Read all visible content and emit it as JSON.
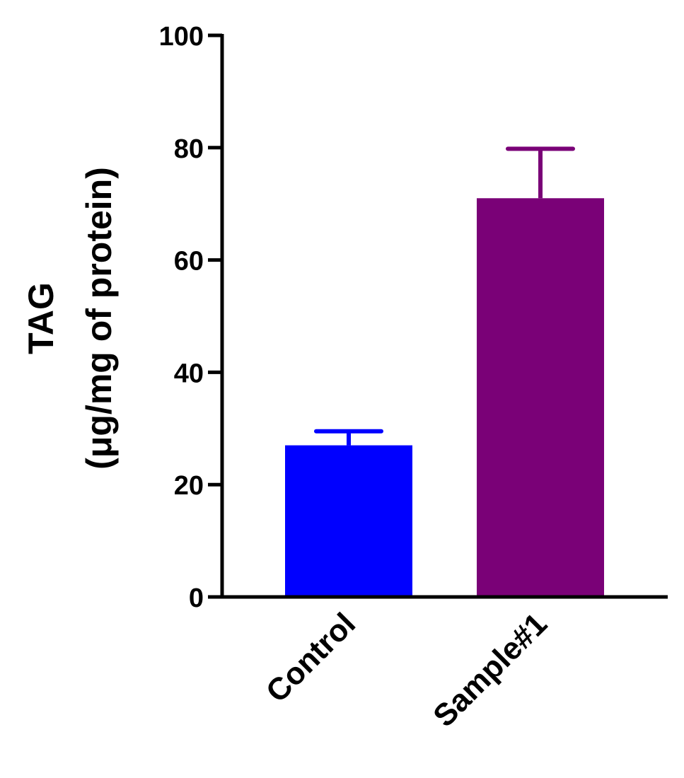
{
  "chart_data": {
    "type": "bar",
    "categories": [
      "Control",
      "Sample#1"
    ],
    "values": [
      27,
      71
    ],
    "errors": [
      2.5,
      8.8
    ],
    "colors": [
      "#0000ff",
      "#7a0177"
    ],
    "ylabel_lines": [
      "TAG",
      "(μg/mg of protein)"
    ],
    "xlabel": "",
    "ylim": [
      0,
      100
    ],
    "yticks": [
      0,
      20,
      40,
      60,
      80,
      100
    ],
    "grid": false,
    "legend": "none"
  }
}
